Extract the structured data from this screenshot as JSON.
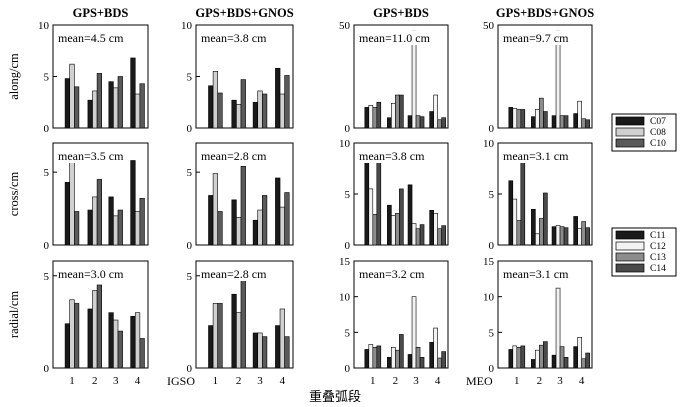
{
  "chart_data": {
    "type": "bar",
    "title": "",
    "xlabel": "重叠弧段",
    "categories": [
      "1",
      "2",
      "3",
      "4"
    ],
    "column_titles": [
      "GPS+BDS",
      "GPS+BDS+GNOS",
      "GPS+BDS",
      "GPS+BDS+GNOS"
    ],
    "row_labels": [
      "along/cm",
      "cross/cm",
      "radial/cm"
    ],
    "group_labels": [
      "IGSO",
      "MEO"
    ],
    "series": {
      "IGSO": [
        "C07",
        "C08",
        "C10"
      ],
      "MEO": [
        "C11",
        "C12",
        "C13",
        "C14"
      ]
    },
    "legend_igso": [
      "C07",
      "C08",
      "C10"
    ],
    "legend_meo": [
      "C11",
      "C12",
      "C13",
      "C14"
    ],
    "colors": {
      "IGSO": [
        "#1a1a1a",
        "#d0d0d0",
        "#5a5a5a"
      ],
      "MEO": [
        "#1a1a1a",
        "#f2f2f2",
        "#8c8c8c",
        "#4a4a4a"
      ]
    },
    "panels": [
      {
        "id": "along-igso-gb",
        "row": 0,
        "col": 0,
        "group": "IGSO",
        "ylim": [
          0,
          10
        ],
        "yticks": [
          "0",
          "5",
          "10"
        ],
        "mean": "mean=4.5 cm",
        "values": [
          [
            4.8,
            6.2,
            4.0
          ],
          [
            2.7,
            3.6,
            5.3
          ],
          [
            4.5,
            3.9,
            5.0
          ],
          [
            6.8,
            3.3,
            4.3
          ]
        ]
      },
      {
        "id": "along-igso-gbg",
        "row": 0,
        "col": 1,
        "group": "IGSO",
        "ylim": [
          0,
          10
        ],
        "yticks": [
          "0",
          "5",
          "10"
        ],
        "mean": "mean=3.8 cm",
        "values": [
          [
            4.1,
            5.5,
            3.4
          ],
          [
            2.7,
            2.3,
            4.7
          ],
          [
            2.5,
            3.6,
            3.3
          ],
          [
            5.8,
            3.3,
            5.1
          ]
        ]
      },
      {
        "id": "along-meo-gb",
        "row": 0,
        "col": 2,
        "group": "MEO",
        "ylim": [
          0,
          50
        ],
        "yticks": [
          "0",
          "50"
        ],
        "mean": "mean=11.0 cm",
        "values": [
          [
            10.0,
            11.0,
            10.0,
            12.5
          ],
          [
            5.0,
            12.0,
            16.0,
            16.0
          ],
          [
            6.0,
            47.0,
            6.0,
            5.5
          ],
          [
            8.0,
            16.0,
            4.0,
            5.0
          ]
        ]
      },
      {
        "id": "along-meo-gbg",
        "row": 0,
        "col": 3,
        "group": "MEO",
        "ylim": [
          0,
          50
        ],
        "yticks": [
          "0",
          "50"
        ],
        "mean": "mean=9.7 cm",
        "values": [
          [
            10.0,
            9.5,
            9.0,
            9.0
          ],
          [
            5.5,
            9.0,
            14.5,
            8.0
          ],
          [
            6.0,
            47.0,
            6.0,
            6.0
          ],
          [
            7.0,
            13.0,
            4.5,
            4.0
          ]
        ]
      },
      {
        "id": "cross-igso-gb",
        "row": 1,
        "col": 0,
        "group": "IGSO",
        "ylim": [
          0,
          7
        ],
        "yticks": [
          "0",
          "5"
        ],
        "mean": "mean=3.5 cm",
        "values": [
          [
            4.3,
            6.5,
            2.3
          ],
          [
            2.4,
            3.3,
            4.5
          ],
          [
            3.3,
            2.0,
            2.4
          ],
          [
            5.8,
            2.3,
            3.2
          ]
        ]
      },
      {
        "id": "cross-igso-gbg",
        "row": 1,
        "col": 1,
        "group": "IGSO",
        "ylim": [
          0,
          7
        ],
        "yticks": [
          "0",
          "5"
        ],
        "mean": "mean=2.8 cm",
        "values": [
          [
            3.4,
            4.9,
            2.3
          ],
          [
            3.1,
            1.9,
            5.4
          ],
          [
            1.7,
            2.4,
            3.4
          ],
          [
            4.6,
            2.6,
            3.6
          ]
        ]
      },
      {
        "id": "cross-meo-gb",
        "row": 1,
        "col": 2,
        "group": "MEO",
        "ylim": [
          0,
          10
        ],
        "yticks": [
          "0",
          "5",
          "10"
        ],
        "mean": "mean=3.8 cm",
        "values": [
          [
            8.5,
            5.5,
            3.0,
            8.3
          ],
          [
            3.9,
            2.9,
            3.1,
            5.5
          ],
          [
            5.9,
            2.1,
            1.6,
            2.0
          ],
          [
            3.4,
            3.1,
            1.6,
            1.9
          ]
        ]
      },
      {
        "id": "cross-meo-gbg",
        "row": 1,
        "col": 3,
        "group": "MEO",
        "ylim": [
          0,
          10
        ],
        "yticks": [
          "0",
          "5",
          "10"
        ],
        "mean": "mean=3.1 cm",
        "values": [
          [
            6.3,
            4.5,
            2.4,
            8.3
          ],
          [
            3.5,
            1.1,
            2.6,
            5.1
          ],
          [
            1.8,
            1.9,
            1.8,
            1.7
          ],
          [
            2.8,
            1.6,
            2.3,
            1.7
          ]
        ]
      },
      {
        "id": "radial-igso-gb",
        "row": 2,
        "col": 0,
        "group": "IGSO",
        "ylim": [
          0,
          5.8
        ],
        "yticks": [
          "0",
          "5"
        ],
        "mean": "mean=3.0 cm",
        "values": [
          [
            2.4,
            3.7,
            3.5
          ],
          [
            3.2,
            4.2,
            4.5
          ],
          [
            3.0,
            2.6,
            2.0
          ],
          [
            2.8,
            3.0,
            1.6
          ]
        ]
      },
      {
        "id": "radial-igso-gbg",
        "row": 2,
        "col": 1,
        "group": "IGSO",
        "ylim": [
          0,
          5.8
        ],
        "yticks": [
          "0",
          "5"
        ],
        "mean": "mean=2.8 cm",
        "values": [
          [
            2.3,
            3.5,
            3.5
          ],
          [
            4.0,
            3.0,
            4.9
          ],
          [
            1.9,
            1.9,
            1.7
          ],
          [
            2.3,
            3.2,
            1.7
          ]
        ]
      },
      {
        "id": "radial-meo-gb",
        "row": 2,
        "col": 2,
        "group": "MEO",
        "ylim": [
          0,
          15
        ],
        "yticks": [
          "0",
          "5",
          "10",
          "15"
        ],
        "mean": "mean=3.2 cm",
        "values": [
          [
            2.6,
            3.3,
            2.9,
            3.1
          ],
          [
            1.5,
            2.9,
            2.5,
            4.7
          ],
          [
            1.9,
            10.0,
            2.9,
            1.5
          ],
          [
            3.6,
            5.6,
            1.4,
            2.3
          ]
        ]
      },
      {
        "id": "radial-meo-gbg",
        "row": 2,
        "col": 3,
        "group": "MEO",
        "ylim": [
          0,
          15
        ],
        "yticks": [
          "0",
          "5",
          "10",
          "15"
        ],
        "mean": "mean=3.1 cm",
        "values": [
          [
            2.6,
            3.1,
            2.9,
            3.1
          ],
          [
            1.2,
            2.5,
            3.2,
            3.7
          ],
          [
            1.8,
            11.2,
            3.0,
            1.5
          ],
          [
            3.0,
            4.3,
            1.3,
            2.1
          ]
        ]
      }
    ]
  }
}
